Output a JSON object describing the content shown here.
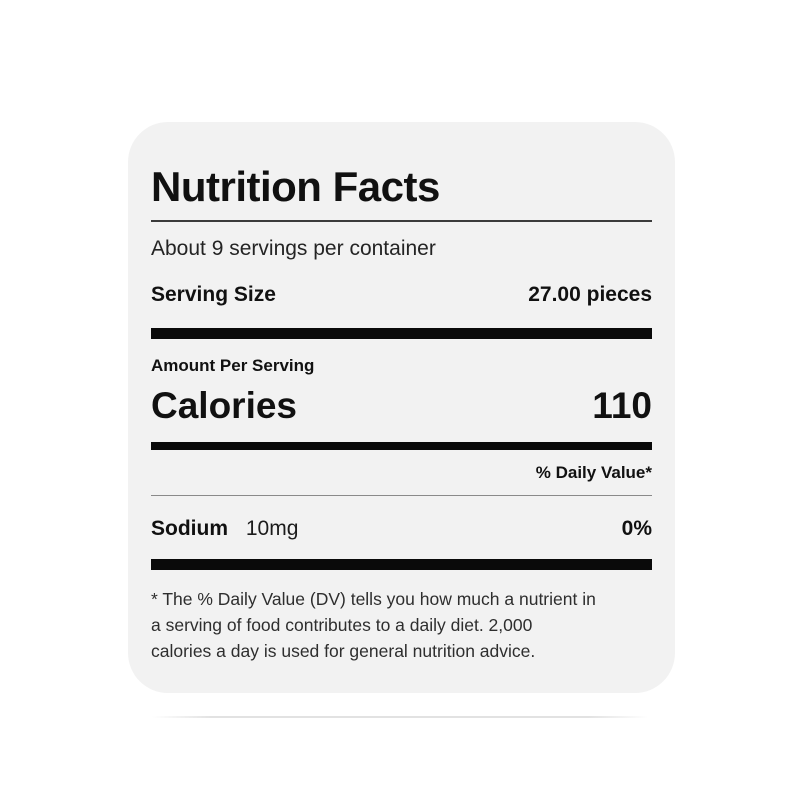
{
  "label": {
    "title": "Nutrition Facts",
    "servings_per_container": "About 9 servings per container",
    "serving_size": {
      "label": "Serving Size",
      "value": "27.00 pieces"
    },
    "amount_per_serving": "Amount Per Serving",
    "calories": {
      "label": "Calories",
      "value": "110"
    },
    "daily_value_header": "% Daily Value*",
    "nutrients": [
      {
        "name": "Sodium",
        "amount": "10mg",
        "daily_value": "0%"
      }
    ],
    "footnote_lines": [
      "* The % Daily Value (DV) tells you how much a nutrient in",
      "a serving of food contributes to a daily diet. 2,000",
      "calories a day is used for general nutrition advice."
    ]
  },
  "colors": {
    "card_background": "#f2f2f2",
    "page_background": "#ffffff",
    "text": "#111111",
    "separator_bar": "#0a0a0a",
    "title_rule": "#3b3b3b",
    "thin_rule": "#8a8a8a"
  }
}
